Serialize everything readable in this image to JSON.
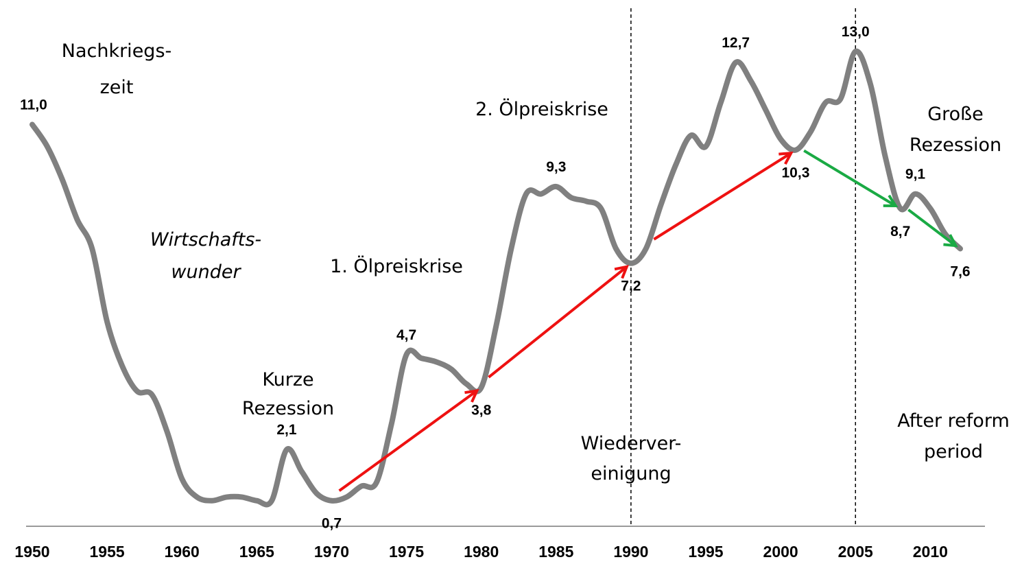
{
  "chart_data": {
    "type": "line",
    "x": [
      1950,
      1951,
      1952,
      1953,
      1954,
      1955,
      1956,
      1957,
      1958,
      1959,
      1960,
      1961,
      1962,
      1963,
      1964,
      1965,
      1966,
      1967,
      1968,
      1969,
      1970,
      1971,
      1972,
      1973,
      1974,
      1975,
      1976,
      1977,
      1978,
      1979,
      1980,
      1981,
      1982,
      1983,
      1984,
      1985,
      1986,
      1987,
      1988,
      1989,
      1990,
      1991,
      1992,
      1993,
      1994,
      1995,
      1996,
      1997,
      1998,
      1999,
      2000,
      2001,
      2002,
      2003,
      2004,
      2005,
      2006,
      2007,
      2008,
      2009,
      2010,
      2011,
      2012
    ],
    "values": [
      11.0,
      10.4,
      9.5,
      8.4,
      7.6,
      5.6,
      4.4,
      3.7,
      3.6,
      2.6,
      1.3,
      0.8,
      0.7,
      0.8,
      0.8,
      0.7,
      0.7,
      2.1,
      1.5,
      0.9,
      0.7,
      0.8,
      1.1,
      1.2,
      2.8,
      4.7,
      4.6,
      4.5,
      4.3,
      3.9,
      3.8,
      5.5,
      7.6,
      9.1,
      9.1,
      9.3,
      9.0,
      8.9,
      8.7,
      7.6,
      7.2,
      7.6,
      8.8,
      9.9,
      10.7,
      10.4,
      11.6,
      12.7,
      12.2,
      11.4,
      10.6,
      10.3,
      10.8,
      11.6,
      11.7,
      13.0,
      12.1,
      10.1,
      8.7,
      9.1,
      8.7,
      8.0,
      7.6
    ],
    "value_labels": [
      "11,0",
      null,
      null,
      null,
      null,
      null,
      null,
      null,
      null,
      null,
      null,
      null,
      null,
      null,
      null,
      null,
      null,
      "2,1",
      null,
      null,
      "0,7",
      null,
      null,
      null,
      null,
      "4,7",
      null,
      null,
      null,
      null,
      "3,8",
      null,
      null,
      null,
      null,
      "9,3",
      null,
      null,
      null,
      null,
      "7,2",
      null,
      null,
      null,
      null,
      null,
      null,
      "12,7",
      null,
      null,
      null,
      "10,3",
      null,
      null,
      null,
      "13,0",
      null,
      null,
      "8,7",
      "9,1",
      null,
      null,
      "7,6"
    ],
    "color": "#808080",
    "xlim": [
      1950,
      2012
    ],
    "xticks": [
      1950,
      1955,
      1960,
      1965,
      1970,
      1975,
      1980,
      1985,
      1990,
      1995,
      2000,
      2005,
      2010
    ],
    "ylim": [
      0,
      13
    ],
    "vlines": [
      1990,
      2005
    ],
    "arrows": [
      {
        "from": 1970,
        "to": 1980,
        "color": "#ee1111"
      },
      {
        "from": 1980,
        "to": 1990,
        "color": "#ee1111"
      },
      {
        "from": 1991,
        "to": 2001,
        "color": "#ee1111"
      },
      {
        "from": 2001,
        "to": 2008,
        "color": "#1aaa44"
      },
      {
        "from": 2008,
        "to": 2012,
        "color": "#1aaa44"
      }
    ],
    "annotations": [
      {
        "lines": [
          "Nachkriegs-",
          "zeit"
        ]
      },
      {
        "lines": [
          "Wirtschafts-",
          "wunder"
        ]
      },
      {
        "lines": [
          "Kurze",
          "Rezession"
        ]
      },
      {
        "lines": [
          "1. Ölpreiskrise"
        ]
      },
      {
        "lines": [
          "2. Ölpreiskrise"
        ]
      },
      {
        "lines": [
          "Wiederver-",
          "einigung"
        ]
      },
      {
        "lines": [
          "Große",
          "Rezession"
        ]
      },
      {
        "lines": [
          "After reform",
          "period"
        ]
      }
    ]
  }
}
